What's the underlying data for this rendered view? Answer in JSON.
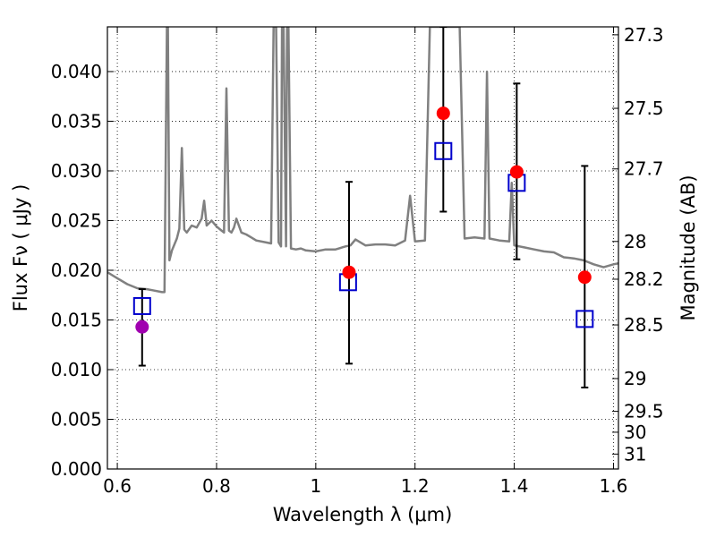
{
  "chart_data": {
    "type": "scatter",
    "xlabel": "Wavelength  λ (μm)",
    "ylabel": "Flux  Fν  ( μJy )",
    "y2label": "Magnitude (AB)",
    "xlim": [
      0.58,
      1.61
    ],
    "ylim": [
      0.0,
      0.0445
    ],
    "grid": true,
    "x_ticks": [
      {
        "value": 0.6,
        "label": "0.6"
      },
      {
        "value": 0.8,
        "label": "0.8"
      },
      {
        "value": 1.0,
        "label": "1"
      },
      {
        "value": 1.2,
        "label": "1.2"
      },
      {
        "value": 1.4,
        "label": "1.4"
      },
      {
        "value": 1.6,
        "label": "1.6"
      }
    ],
    "y_ticks": [
      {
        "value": 0.0,
        "label": "0.000"
      },
      {
        "value": 0.005,
        "label": "0.005"
      },
      {
        "value": 0.01,
        "label": "0.010"
      },
      {
        "value": 0.015,
        "label": "0.015"
      },
      {
        "value": 0.02,
        "label": "0.020"
      },
      {
        "value": 0.025,
        "label": "0.025"
      },
      {
        "value": 0.03,
        "label": "0.030"
      },
      {
        "value": 0.035,
        "label": "0.035"
      },
      {
        "value": 0.04,
        "label": "0.040"
      }
    ],
    "y2_ticks": [
      {
        "flux": 0.0437,
        "label": "27.3"
      },
      {
        "flux": 0.0363,
        "label": "27.5"
      },
      {
        "flux": 0.0302,
        "label": "27.7"
      },
      {
        "flux": 0.0229,
        "label": "28"
      },
      {
        "flux": 0.0191,
        "label": "28.2"
      },
      {
        "flux": 0.0145,
        "label": "28.5"
      },
      {
        "flux": 0.0091,
        "label": "29"
      },
      {
        "flux": 0.0058,
        "label": "29.5"
      },
      {
        "flux": 0.0037,
        "label": "30"
      },
      {
        "flux": 0.0015,
        "label": "31"
      }
    ],
    "series": [
      {
        "kind": "line",
        "color": "#808080",
        "x": [
          0.58,
          0.6,
          0.62,
          0.64,
          0.66,
          0.67,
          0.69,
          0.695,
          0.7,
          0.702,
          0.705,
          0.71,
          0.72,
          0.725,
          0.73,
          0.735,
          0.74,
          0.75,
          0.76,
          0.77,
          0.775,
          0.78,
          0.79,
          0.8,
          0.81,
          0.815,
          0.82,
          0.825,
          0.83,
          0.835,
          0.84,
          0.85,
          0.86,
          0.87,
          0.88,
          0.9,
          0.91,
          0.915,
          0.92,
          0.925,
          0.93,
          0.932,
          0.935,
          0.94,
          0.942,
          0.945,
          0.95,
          0.96,
          0.97,
          0.98,
          1.0,
          1.02,
          1.04,
          1.06,
          1.07,
          1.08,
          1.1,
          1.12,
          1.14,
          1.16,
          1.18,
          1.19,
          1.2,
          1.22,
          1.23,
          1.24,
          1.25,
          1.255,
          1.26,
          1.27,
          1.28,
          1.29,
          1.3,
          1.32,
          1.34,
          1.345,
          1.35,
          1.37,
          1.39,
          1.395,
          1.4,
          1.42,
          1.44,
          1.46,
          1.48,
          1.5,
          1.52,
          1.54,
          1.56,
          1.58,
          1.6,
          1.61
        ],
        "y": [
          0.0198,
          0.0192,
          0.0186,
          0.0182,
          0.0181,
          0.018,
          0.0178,
          0.0178,
          0.0445,
          0.0445,
          0.021,
          0.022,
          0.0232,
          0.0242,
          0.0323,
          0.0241,
          0.0238,
          0.0245,
          0.0243,
          0.0252,
          0.027,
          0.0245,
          0.025,
          0.0244,
          0.024,
          0.0238,
          0.0383,
          0.024,
          0.0238,
          0.0243,
          0.0252,
          0.0238,
          0.0236,
          0.0233,
          0.023,
          0.0228,
          0.0227,
          0.0445,
          0.0445,
          0.0228,
          0.0224,
          0.0445,
          0.0445,
          0.0224,
          0.0445,
          0.0445,
          0.0222,
          0.0221,
          0.0222,
          0.022,
          0.0219,
          0.0221,
          0.0221,
          0.0224,
          0.0225,
          0.0231,
          0.0225,
          0.0226,
          0.0226,
          0.0225,
          0.023,
          0.0275,
          0.0229,
          0.023,
          0.0445,
          0.0445,
          0.0445,
          0.0445,
          0.0445,
          0.0445,
          0.0445,
          0.0445,
          0.0232,
          0.0233,
          0.0232,
          0.04,
          0.0232,
          0.023,
          0.0229,
          0.0288,
          0.0225,
          0.0223,
          0.0221,
          0.0219,
          0.0218,
          0.0213,
          0.0212,
          0.021,
          0.0206,
          0.0203,
          0.0206,
          0.0207
        ]
      },
      {
        "kind": "errorbars",
        "color": "#000000",
        "points": [
          {
            "x": 0.65,
            "y": 0.0143,
            "low": 0.0104,
            "high": 0.0181
          },
          {
            "x": 1.067,
            "y": 0.0198,
            "low": 0.0106,
            "high": 0.0289
          },
          {
            "x": 1.257,
            "y": 0.0358,
            "low": 0.0259,
            "high": 0.0445
          },
          {
            "x": 1.405,
            "y": 0.0299,
            "low": 0.0211,
            "high": 0.0388
          },
          {
            "x": 1.542,
            "y": 0.0193,
            "low": 0.0082,
            "high": 0.0305
          }
        ]
      },
      {
        "kind": "squares",
        "color": "#0000cc",
        "x": [
          0.65,
          1.065,
          1.257,
          1.405,
          1.542
        ],
        "y": [
          0.0164,
          0.0188,
          0.032,
          0.0288,
          0.0151
        ]
      },
      {
        "kind": "circles",
        "x": [
          0.65,
          1.067,
          1.257,
          1.405,
          1.542
        ],
        "y": [
          0.0143,
          0.0198,
          0.0358,
          0.0299,
          0.0193
        ],
        "colors": [
          "#a000b0",
          "#ff0000",
          "#ff0000",
          "#ff0000",
          "#ff0000"
        ]
      }
    ]
  }
}
